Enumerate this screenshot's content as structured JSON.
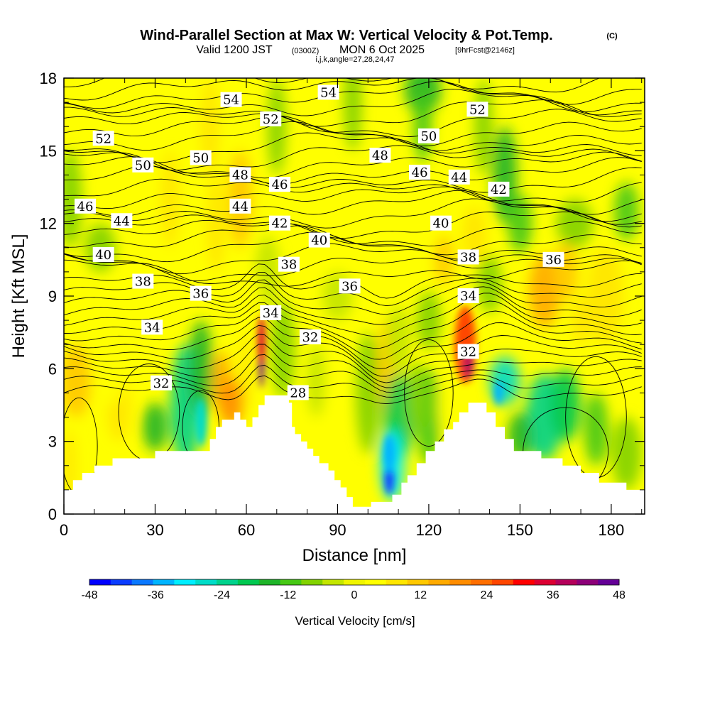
{
  "title": {
    "main": "Wind-Parallel Section at Max W: Vertical Velocity & Pot.Temp.",
    "copyright": "(C)",
    "valid_prefix": "Valid 1200 JST",
    "valid_utc": "(0300Z)",
    "valid_date": "MON 6 Oct 2025",
    "forecast": "[9hrFcst@2146z]",
    "grid_info": "i,j,k,angle=27,28,24,47"
  },
  "chart_data": {
    "type": "heatmap",
    "xlabel": "Distance [nm]",
    "ylabel": "Height [Kft MSL]",
    "xlim": [
      0,
      191
    ],
    "ylim": [
      0,
      18
    ],
    "x_ticks": [
      0,
      30,
      60,
      90,
      120,
      150,
      180
    ],
    "y_ticks": [
      0,
      3,
      6,
      9,
      12,
      15,
      18
    ],
    "colorbar": {
      "title": "Vertical Velocity [cm/s]",
      "ticks": [
        -48,
        -36,
        -24,
        -12,
        0,
        12,
        24,
        36,
        48
      ],
      "range": [
        -48,
        48
      ],
      "colors": [
        "#0000ff",
        "#0a3cff",
        "#0a78ff",
        "#00b4ff",
        "#00eeff",
        "#00dcc8",
        "#00d28c",
        "#00c850",
        "#1eb428",
        "#46c814",
        "#82d200",
        "#c3e600",
        "#f0f500",
        "#ffff00",
        "#ffe600",
        "#ffc800",
        "#ffaa00",
        "#ff8c00",
        "#ff6e00",
        "#ff4600",
        "#ff0000",
        "#dc0032",
        "#b4005a",
        "#8c0078",
        "#640096"
      ]
    },
    "terrain_kft": [
      [
        0,
        1.0
      ],
      [
        3,
        1.0
      ],
      [
        3,
        1.4
      ],
      [
        6,
        1.4
      ],
      [
        6,
        1.7
      ],
      [
        10,
        1.7
      ],
      [
        10,
        2.0
      ],
      [
        16,
        2.0
      ],
      [
        16,
        2.3
      ],
      [
        30,
        2.3
      ],
      [
        30,
        2.6
      ],
      [
        48,
        2.6
      ],
      [
        48,
        3.1
      ],
      [
        50,
        3.1
      ],
      [
        50,
        3.6
      ],
      [
        52,
        3.6
      ],
      [
        52,
        3.9
      ],
      [
        56,
        3.9
      ],
      [
        56,
        4.2
      ],
      [
        58,
        4.2
      ],
      [
        58,
        3.9
      ],
      [
        60,
        3.9
      ],
      [
        60,
        3.6
      ],
      [
        62,
        3.6
      ],
      [
        62,
        4.0
      ],
      [
        64,
        4.0
      ],
      [
        64,
        4.5
      ],
      [
        66,
        4.5
      ],
      [
        66,
        4.9
      ],
      [
        74,
        4.9
      ],
      [
        74,
        4.6
      ],
      [
        75,
        4.6
      ],
      [
        75,
        3.6
      ],
      [
        76,
        3.6
      ],
      [
        76,
        3.3
      ],
      [
        78,
        3.3
      ],
      [
        78,
        3.0
      ],
      [
        80,
        3.0
      ],
      [
        80,
        2.7
      ],
      [
        82,
        2.7
      ],
      [
        82,
        2.4
      ],
      [
        84,
        2.4
      ],
      [
        84,
        2.1
      ],
      [
        87,
        2.1
      ],
      [
        87,
        1.8
      ],
      [
        89,
        1.8
      ],
      [
        89,
        1.4
      ],
      [
        91,
        1.4
      ],
      [
        91,
        1.1
      ],
      [
        93,
        1.1
      ],
      [
        93,
        0.7
      ],
      [
        95,
        0.7
      ],
      [
        95,
        0.3
      ],
      [
        101,
        0.3
      ],
      [
        101,
        0.5
      ],
      [
        108,
        0.5
      ],
      [
        108,
        0.8
      ],
      [
        111,
        0.8
      ],
      [
        111,
        1.3
      ],
      [
        113,
        1.3
      ],
      [
        113,
        1.6
      ],
      [
        116,
        1.6
      ],
      [
        116,
        2.1
      ],
      [
        119,
        2.1
      ],
      [
        119,
        2.6
      ],
      [
        122,
        2.6
      ],
      [
        122,
        3.0
      ],
      [
        125,
        3.0
      ],
      [
        125,
        3.5
      ],
      [
        128,
        3.5
      ],
      [
        128,
        3.8
      ],
      [
        130,
        3.8
      ],
      [
        130,
        4.2
      ],
      [
        133,
        4.2
      ],
      [
        133,
        4.6
      ],
      [
        139,
        4.6
      ],
      [
        139,
        4.2
      ],
      [
        142,
        4.2
      ],
      [
        142,
        3.6
      ],
      [
        145,
        3.6
      ],
      [
        145,
        3.1
      ],
      [
        148,
        3.1
      ],
      [
        148,
        2.6
      ],
      [
        157,
        2.6
      ],
      [
        157,
        2.3
      ],
      [
        164,
        2.3
      ],
      [
        164,
        2.0
      ],
      [
        170,
        2.0
      ],
      [
        170,
        1.7
      ],
      [
        176,
        1.7
      ],
      [
        176,
        1.3
      ],
      [
        185,
        1.3
      ],
      [
        185,
        1.0
      ],
      [
        191,
        1.0
      ]
    ],
    "contour_labels": [
      {
        "text": "54",
        "x": 55,
        "y": 17.1
      },
      {
        "text": "54",
        "x": 87,
        "y": 17.4
      },
      {
        "text": "52",
        "x": 13,
        "y": 15.5
      },
      {
        "text": "52",
        "x": 68,
        "y": 16.3
      },
      {
        "text": "52",
        "x": 136,
        "y": 16.7
      },
      {
        "text": "50",
        "x": 26,
        "y": 14.4
      },
      {
        "text": "50",
        "x": 45,
        "y": 14.7
      },
      {
        "text": "50",
        "x": 120,
        "y": 15.6
      },
      {
        "text": "48",
        "x": 58,
        "y": 14.0
      },
      {
        "text": "48",
        "x": 104,
        "y": 14.8
      },
      {
        "text": "46",
        "x": 7,
        "y": 12.7
      },
      {
        "text": "46",
        "x": 71,
        "y": 13.6
      },
      {
        "text": "46",
        "x": 117,
        "y": 14.1
      },
      {
        "text": "44",
        "x": 19,
        "y": 12.1
      },
      {
        "text": "44",
        "x": 58,
        "y": 12.7
      },
      {
        "text": "44",
        "x": 130,
        "y": 13.9
      },
      {
        "text": "42",
        "x": 71,
        "y": 12.0
      },
      {
        "text": "42",
        "x": 143,
        "y": 13.4
      },
      {
        "text": "40",
        "x": 13,
        "y": 10.7
      },
      {
        "text": "40",
        "x": 84,
        "y": 11.3
      },
      {
        "text": "40",
        "x": 124,
        "y": 12.0
      },
      {
        "text": "38",
        "x": 26,
        "y": 9.6
      },
      {
        "text": "38",
        "x": 74,
        "y": 10.3
      },
      {
        "text": "38",
        "x": 133,
        "y": 10.6
      },
      {
        "text": "36",
        "x": 45,
        "y": 9.1
      },
      {
        "text": "36",
        "x": 94,
        "y": 9.4
      },
      {
        "text": "36",
        "x": 161,
        "y": 10.5
      },
      {
        "text": "34",
        "x": 29,
        "y": 7.7
      },
      {
        "text": "34",
        "x": 68,
        "y": 8.3
      },
      {
        "text": "34",
        "x": 133,
        "y": 9.0
      },
      {
        "text": "32",
        "x": 32,
        "y": 5.4
      },
      {
        "text": "32",
        "x": 81,
        "y": 7.3
      },
      {
        "text": "32",
        "x": 133,
        "y": 6.7
      },
      {
        "text": "28",
        "x": 77,
        "y": 5.0
      }
    ]
  }
}
